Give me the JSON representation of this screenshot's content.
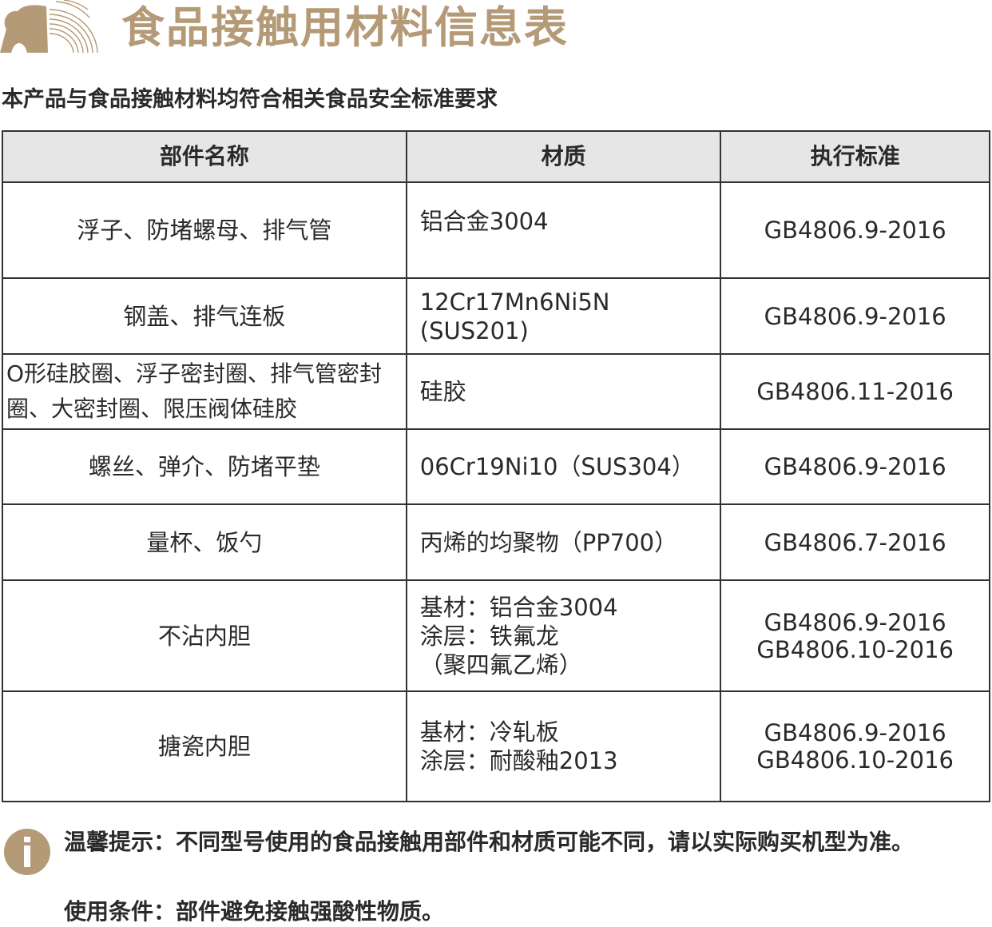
{
  "header": {
    "title": "食品接触用材料信息表",
    "subtitle": "本产品与食品接触材料均符合相关食品安全标准要求",
    "brand_color": "#b49a76",
    "logo_icon": "brand-logo-icon"
  },
  "table": {
    "columns": [
      "部件名称",
      "材质",
      "执行标准"
    ],
    "rows": [
      {
        "part": "浮子、防堵螺母、排气管",
        "material": [
          "铝合金3004"
        ],
        "standard": [
          "GB4806.9-2016"
        ]
      },
      {
        "part": "钢盖、排气连板",
        "material": [
          "12Cr17Mn6Ni5N",
          "(SUS201)"
        ],
        "standard": [
          "GB4806.9-2016"
        ]
      },
      {
        "part": "O形硅胶圈、浮子密封圈、排气管密封圈、大密封圈、限压阀体硅胶",
        "material": [
          "硅胶"
        ],
        "standard": [
          "GB4806.11-2016"
        ]
      },
      {
        "part": "螺丝、弹介、防堵平垫",
        "material": [
          "06Cr19Ni10（SUS304）"
        ],
        "standard": [
          "GB4806.9-2016"
        ]
      },
      {
        "part": "量杯、饭勺",
        "material": [
          "丙烯的均聚物（PP700）"
        ],
        "standard": [
          "GB4806.7-2016"
        ]
      },
      {
        "part": "不沾内胆",
        "material": [
          "基材：铝合金3004",
          "涂层：铁氟龙",
          "（聚四氟乙烯）"
        ],
        "standard": [
          "GB4806.9-2016",
          "GB4806.10-2016"
        ]
      },
      {
        "part": "搪瓷内胆",
        "material": [
          "基材：冷轧板",
          "涂层：耐酸釉2013"
        ],
        "standard": [
          "GB4806.9-2016",
          "GB4806.10-2016"
        ]
      }
    ]
  },
  "notes": {
    "icon": "info-icon",
    "tip": "温馨提示：不同型号使用的食品接触用部件和材质可能不同，请以实际购买机型为准。",
    "condition": "使用条件：部件避免接触强酸性物质。"
  }
}
